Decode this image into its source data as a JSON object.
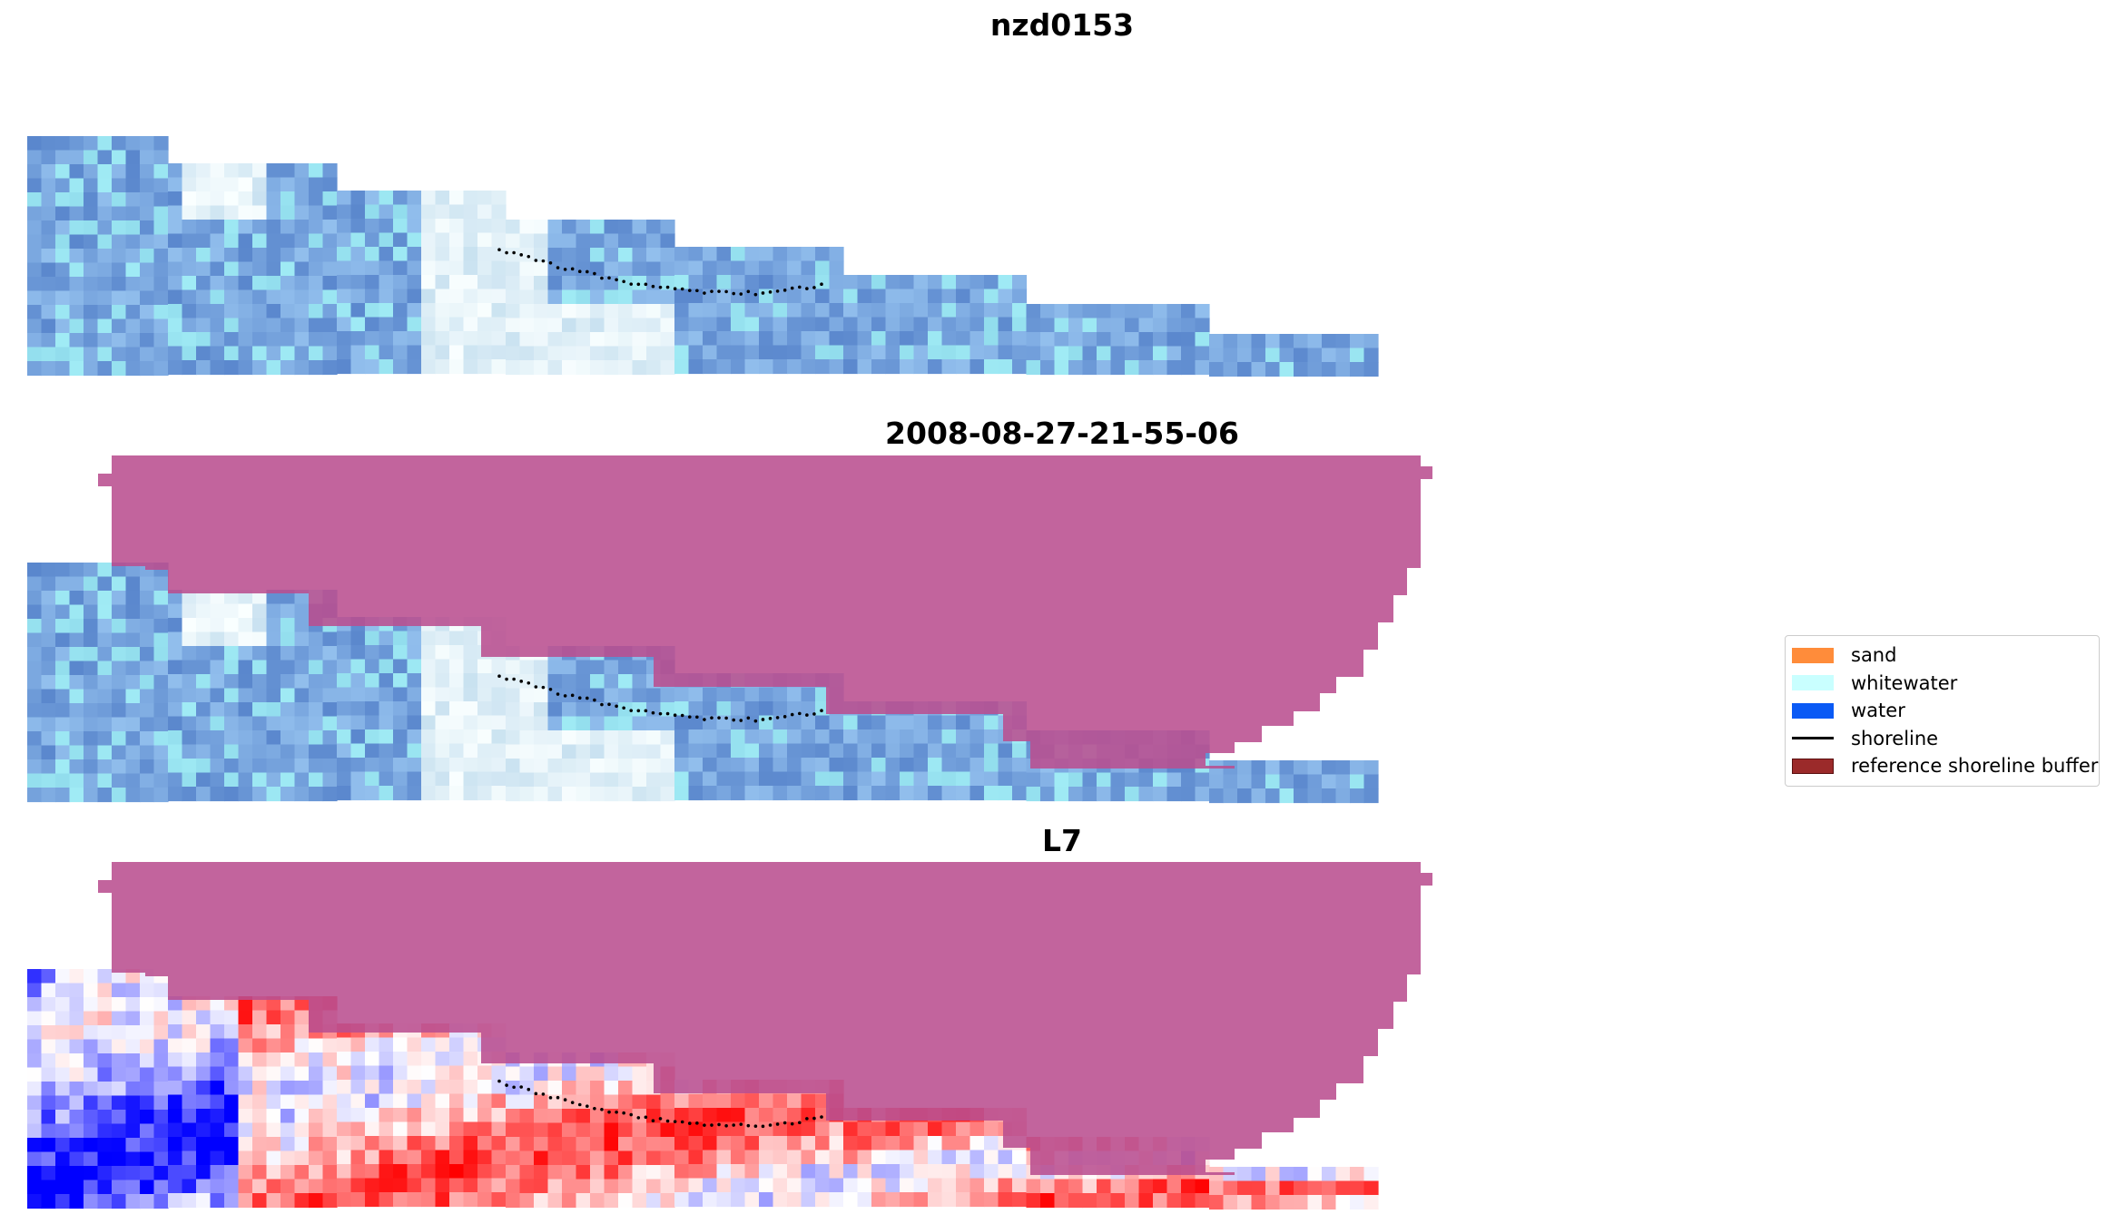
{
  "titles": {
    "site": "nzd0153",
    "date": "2008-08-27-21-55-06",
    "satellite": "L7"
  },
  "legend": {
    "items": [
      {
        "label": "sand",
        "color": "#ff8c3a",
        "kind": "patch"
      },
      {
        "label": "whitewater",
        "color": "#c9ffff",
        "kind": "patch"
      },
      {
        "label": "water",
        "color": "#0a5af5",
        "kind": "patch"
      },
      {
        "label": "shoreline",
        "color": "#000000",
        "kind": "line"
      },
      {
        "label": "reference shoreline buffer",
        "color": "#9b2a2a",
        "kind": "patch",
        "edge": "#5a1010"
      }
    ]
  },
  "colors": {
    "buffer_overlay": "#b94f8f",
    "rgb_base": "#6f98d6",
    "shoreline": "#000000"
  }
}
